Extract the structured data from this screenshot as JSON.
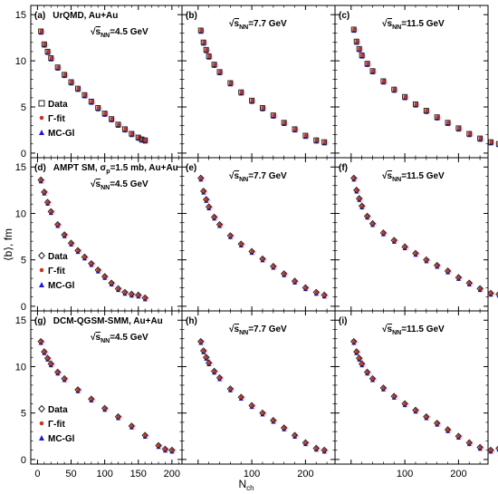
{
  "figure": {
    "ylabel": "⟨b⟩, fm",
    "xlabel": "N",
    "xlabel_sub": "ch"
  },
  "colors": {
    "data": "#222222",
    "gamma_fit": "#c0392b",
    "mc_gl": "#1f1fbf",
    "gamma_fit_halo": "#ff88dd"
  },
  "legend": {
    "rows": {
      "r0": {
        "data": "Data",
        "fit": "Γ-fit",
        "mc": "MC-Gl",
        "data_marker": "square"
      },
      "r1": {
        "data": "Data",
        "fit": "Γ-fit",
        "mc": "MC-Gl",
        "data_marker": "diamond"
      },
      "r2": {
        "data": "Data",
        "fit": "Γ-fit",
        "mc": "MC-Gl",
        "data_marker": "diamond"
      }
    }
  },
  "chart_data": [
    {
      "id": "a",
      "row": 0,
      "col": 0,
      "type": "scatter",
      "tag": "(a)",
      "title": "UrQMD, Au+Au",
      "energy": "4.5 GeV",
      "sqrt": "s",
      "sub": "NN",
      "x": [
        5,
        10,
        15,
        20,
        30,
        40,
        50,
        60,
        70,
        80,
        90,
        100,
        110,
        120,
        130,
        140,
        150,
        155,
        160
      ],
      "y": [
        13.2,
        11.8,
        11.0,
        10.3,
        9.3,
        8.5,
        7.7,
        7.0,
        6.3,
        5.6,
        4.9,
        4.3,
        3.7,
        3.1,
        2.6,
        2.1,
        1.7,
        1.5,
        1.4
      ]
    },
    {
      "id": "b",
      "row": 0,
      "col": 1,
      "type": "scatter",
      "tag": "(b)",
      "title": "",
      "energy": "7.7 GeV",
      "sqrt": "s",
      "sub": "NN",
      "x": [
        5,
        10,
        15,
        20,
        30,
        40,
        60,
        80,
        100,
        120,
        140,
        160,
        180,
        200,
        220,
        235
      ],
      "y": [
        13.3,
        12.0,
        11.2,
        10.5,
        9.6,
        8.8,
        7.6,
        6.6,
        5.7,
        4.9,
        4.1,
        3.3,
        2.6,
        1.9,
        1.4,
        1.2
      ]
    },
    {
      "id": "c",
      "row": 0,
      "col": 2,
      "type": "scatter",
      "tag": "(c)",
      "title": "",
      "energy": "11.5 GeV",
      "sqrt": "s",
      "sub": "NN",
      "x": [
        5,
        10,
        15,
        20,
        30,
        40,
        60,
        80,
        100,
        120,
        140,
        160,
        180,
        200,
        220,
        240,
        260,
        275
      ],
      "y": [
        13.4,
        12.1,
        11.3,
        10.6,
        9.7,
        8.9,
        7.8,
        6.9,
        6.1,
        5.3,
        4.6,
        3.9,
        3.3,
        2.7,
        2.1,
        1.6,
        1.2,
        1.0
      ]
    },
    {
      "id": "d",
      "row": 1,
      "col": 0,
      "type": "scatter",
      "tag": "(d)",
      "title": "AMPT SM, σ",
      "title_sub": "p",
      "title_rest": "=1.5 mb, Au+Au",
      "energy": "4.5 GeV",
      "sqrt": "s",
      "sub": "NN",
      "x": [
        5,
        10,
        15,
        20,
        30,
        40,
        50,
        60,
        70,
        80,
        90,
        100,
        110,
        120,
        130,
        140,
        150,
        160
      ],
      "y": [
        13.6,
        12.3,
        11.2,
        10.2,
        8.8,
        7.7,
        6.8,
        6.0,
        5.3,
        4.6,
        3.9,
        3.2,
        2.5,
        1.9,
        1.5,
        1.3,
        1.2,
        0.9
      ]
    },
    {
      "id": "e",
      "row": 1,
      "col": 1,
      "type": "scatter",
      "tag": "(e)",
      "title": "",
      "energy": "7.7 GeV",
      "sqrt": "s",
      "sub": "NN",
      "x": [
        5,
        10,
        15,
        20,
        30,
        40,
        60,
        80,
        100,
        120,
        140,
        160,
        180,
        200,
        220,
        235
      ],
      "y": [
        13.8,
        12.4,
        11.5,
        10.7,
        9.6,
        8.8,
        7.6,
        6.7,
        5.9,
        5.1,
        4.3,
        3.5,
        2.7,
        2.0,
        1.5,
        1.2
      ]
    },
    {
      "id": "f",
      "row": 1,
      "col": 2,
      "type": "scatter",
      "tag": "(f)",
      "title": "",
      "energy": "11.5 GeV",
      "sqrt": "s",
      "sub": "NN",
      "x": [
        5,
        10,
        15,
        20,
        30,
        40,
        60,
        80,
        100,
        120,
        140,
        160,
        180,
        200,
        220,
        240,
        260,
        275
      ],
      "y": [
        13.8,
        12.5,
        11.6,
        10.8,
        9.7,
        8.9,
        7.9,
        7.1,
        6.4,
        5.7,
        5.0,
        4.4,
        3.8,
        3.1,
        2.5,
        1.9,
        1.4,
        1.3
      ]
    },
    {
      "id": "g",
      "row": 2,
      "col": 0,
      "type": "scatter",
      "tag": "(g)",
      "title": "DCM-QGSM-SMM, Au+Au",
      "energy": "4.5 GeV",
      "sqrt": "s",
      "sub": "NN",
      "x": [
        5,
        10,
        15,
        20,
        30,
        40,
        60,
        80,
        100,
        120,
        140,
        160,
        180,
        190,
        200
      ],
      "y": [
        12.7,
        11.6,
        10.9,
        10.3,
        9.4,
        8.7,
        7.5,
        6.5,
        5.5,
        4.6,
        3.6,
        2.6,
        1.5,
        1.1,
        1.0
      ]
    },
    {
      "id": "h",
      "row": 2,
      "col": 1,
      "type": "scatter",
      "tag": "(h)",
      "title": "",
      "energy": "7.7 GeV",
      "sqrt": "s",
      "sub": "NN",
      "x": [
        5,
        10,
        15,
        20,
        30,
        40,
        60,
        80,
        100,
        120,
        140,
        160,
        180,
        200,
        220,
        235
      ],
      "y": [
        12.7,
        11.7,
        11.0,
        10.4,
        9.5,
        8.8,
        7.6,
        6.7,
        5.8,
        5.0,
        4.2,
        3.4,
        2.6,
        1.8,
        1.2,
        1.0
      ]
    },
    {
      "id": "i",
      "row": 2,
      "col": 2,
      "type": "scatter",
      "tag": "(i)",
      "title": "",
      "energy": "11.5 GeV",
      "sqrt": "s",
      "sub": "NN",
      "x": [
        5,
        10,
        15,
        20,
        30,
        40,
        60,
        80,
        100,
        120,
        140,
        160,
        180,
        200,
        220,
        240,
        260,
        275
      ],
      "y": [
        12.7,
        11.6,
        10.9,
        10.3,
        9.4,
        8.7,
        7.7,
        6.8,
        6.0,
        5.3,
        4.6,
        3.9,
        3.2,
        2.5,
        1.8,
        1.3,
        1.0,
        1.2
      ]
    }
  ],
  "axes": {
    "ylim": [
      -0.5,
      16
    ],
    "yticks": [
      "0",
      "5",
      "10",
      "15"
    ],
    "xlim_col0": [
      -10,
      215
    ],
    "xlim_col12": [
      -30,
      255
    ],
    "xticks_col0": [
      "0",
      "50",
      "100",
      "150",
      "200"
    ],
    "xticks_col1": [
      "100",
      "200"
    ],
    "xticks_col2": [
      "100",
      "200",
      "300"
    ]
  }
}
